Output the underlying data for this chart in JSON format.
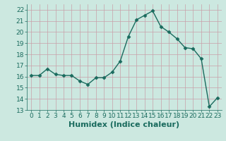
{
  "xlabel": "Humidex (Indice chaleur)",
  "x": [
    0,
    1,
    2,
    3,
    4,
    5,
    6,
    7,
    8,
    9,
    10,
    11,
    12,
    13,
    14,
    15,
    16,
    17,
    18,
    19,
    20,
    21,
    22,
    23
  ],
  "y": [
    16.1,
    16.1,
    16.7,
    16.2,
    16.1,
    16.1,
    15.6,
    15.3,
    15.9,
    15.9,
    16.4,
    17.4,
    19.6,
    21.1,
    21.5,
    21.9,
    20.5,
    20.0,
    19.4,
    18.6,
    18.5,
    17.6,
    13.3,
    14.1
  ],
  "line_color": "#1a6b5e",
  "bg_color": "#cce8e0",
  "grid_color": "#c8a0a8",
  "ylim": [
    13,
    22.5
  ],
  "xlim": [
    -0.5,
    23.5
  ],
  "yticks": [
    13,
    14,
    15,
    16,
    17,
    18,
    19,
    20,
    21,
    22
  ],
  "xticks": [
    0,
    1,
    2,
    3,
    4,
    5,
    6,
    7,
    8,
    9,
    10,
    11,
    12,
    13,
    14,
    15,
    16,
    17,
    18,
    19,
    20,
    21,
    22,
    23
  ],
  "marker": "D",
  "markersize": 2.5,
  "linewidth": 1.0,
  "xlabel_fontsize": 8,
  "tick_fontsize": 6.5,
  "tick_color": "#1a6b5e",
  "label_color": "#1a6b5e"
}
